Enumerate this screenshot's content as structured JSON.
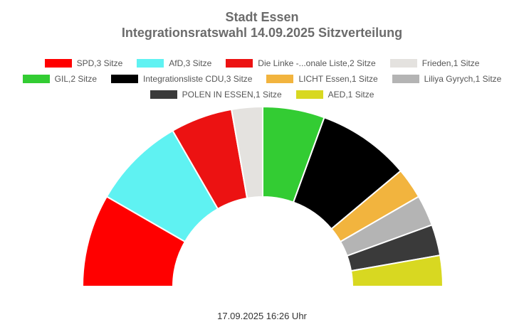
{
  "page": {
    "title_line1": "Stadt Essen",
    "title_line2": "Integrationsratswahl 14.09.2025 Sitzverteilung",
    "footer": "17.09.2025 16:26 Uhr"
  },
  "chart_data": {
    "type": "pie",
    "variant": "half-donut",
    "title": "Stadt Essen Integrationsratswahl 14.09.2025 Sitzverteilung",
    "unit": "Sitze",
    "total_seats": 18,
    "legend_position": "top",
    "series": [
      {
        "name": "SPD",
        "label": "SPD,3 Sitze",
        "seats": 3,
        "color": "#FF0000"
      },
      {
        "name": "AfD",
        "label": "AfD,3 Sitze",
        "seats": 3,
        "color": "#5FF2F2"
      },
      {
        "name": "Die Linke -...onale Liste",
        "label": "Die Linke -...onale Liste,2 Sitze",
        "seats": 2,
        "color": "#EC1212"
      },
      {
        "name": "Frieden",
        "label": "Frieden,1 Sitze",
        "seats": 1,
        "color": "#E4E2DF"
      },
      {
        "name": "GIL",
        "label": "GIL,2 Sitze",
        "seats": 2,
        "color": "#33CC33"
      },
      {
        "name": "Integrationsliste CDU",
        "label": "Integrationsliste CDU,3 Sitze",
        "seats": 3,
        "color": "#000000"
      },
      {
        "name": "LICHT Essen",
        "label": "LICHT Essen,1 Sitze",
        "seats": 1,
        "color": "#F2B43E"
      },
      {
        "name": "Liliya Gyrych",
        "label": "Liliya Gyrych,1 Sitze",
        "seats": 1,
        "color": "#B4B4B4"
      },
      {
        "name": "POLEN IN ESSEN",
        "label": "POLEN IN ESSEN,1 Sitze",
        "seats": 1,
        "color": "#3A3A3A"
      },
      {
        "name": "AED",
        "label": "AED,1 Sitze",
        "seats": 1,
        "color": "#D8D821"
      }
    ],
    "legend_rows": [
      [
        0,
        1,
        2,
        3
      ],
      [
        4,
        5,
        6,
        7
      ],
      [
        8,
        9
      ]
    ]
  }
}
